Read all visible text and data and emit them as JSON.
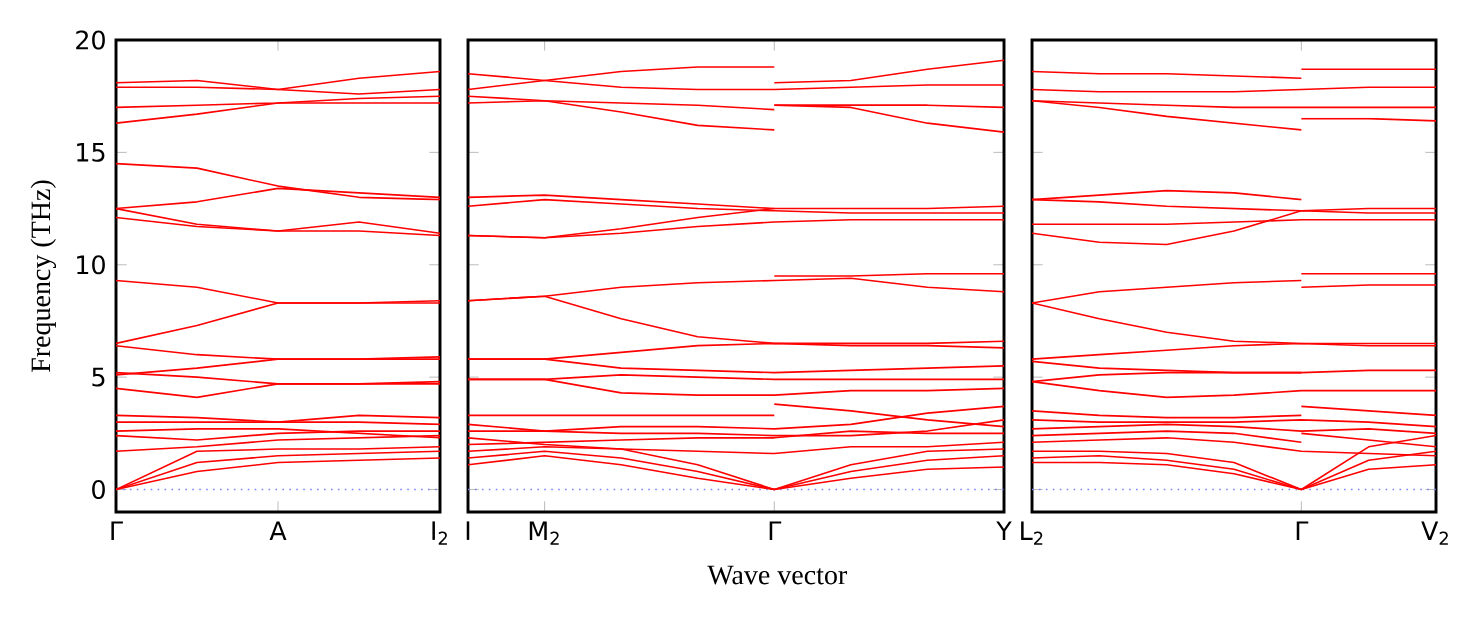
{
  "chart_data": [
    {
      "type": "line",
      "color": "#ff0000",
      "ylabel": "Frequency (THz)",
      "ylim": [
        -1,
        20
      ],
      "yticks": [
        0,
        5,
        10,
        15,
        20
      ],
      "categories": [
        "Γ",
        null,
        "A",
        null,
        "I$_{2}$"
      ],
      "ref_lines": [
        {
          "axis": "y",
          "value": 0,
          "color": "#8080ff",
          "line_style": "dotted"
        }
      ],
      "series": [
        {
          "values": [
            18.1,
            18.2,
            17.8,
            18.3,
            18.6
          ]
        },
        {
          "values": [
            17.9,
            17.9,
            17.8,
            17.6,
            17.8
          ]
        },
        {
          "values": [
            17.0,
            17.1,
            17.2,
            17.4,
            17.5
          ]
        },
        {
          "values": [
            16.3,
            16.7,
            17.2,
            17.2,
            17.2
          ]
        },
        {
          "values": [
            14.5,
            14.3,
            13.5,
            13.0,
            12.9
          ]
        },
        {
          "values": [
            12.5,
            12.8,
            13.4,
            13.2,
            13.0
          ]
        },
        {
          "values": [
            12.5,
            11.8,
            11.5,
            11.9,
            11.4
          ]
        },
        {
          "values": [
            12.1,
            11.7,
            11.5,
            11.5,
            11.3
          ]
        },
        {
          "values": [
            9.3,
            9.0,
            8.3,
            8.3,
            8.3
          ]
        },
        {
          "values": [
            6.5,
            7.3,
            8.3,
            8.3,
            8.4
          ]
        },
        {
          "values": [
            6.4,
            6.0,
            5.8,
            5.8,
            5.8
          ]
        },
        {
          "values": [
            5.2,
            5.0,
            4.7,
            4.7,
            4.7
          ]
        },
        {
          "values": [
            5.1,
            5.4,
            5.8,
            5.8,
            5.9
          ]
        },
        {
          "values": [
            4.5,
            4.1,
            4.7,
            4.7,
            4.8
          ]
        },
        {
          "values": [
            3.3,
            3.2,
            3.0,
            3.3,
            3.2
          ]
        },
        {
          "values": [
            3.0,
            3.0,
            3.0,
            3.0,
            2.9
          ]
        },
        {
          "values": [
            2.6,
            2.7,
            2.7,
            2.5,
            2.3
          ]
        },
        {
          "values": [
            2.4,
            2.2,
            2.5,
            2.6,
            2.6
          ]
        },
        {
          "values": [
            1.7,
            1.9,
            2.2,
            2.3,
            2.4
          ]
        },
        {
          "values": [
            0,
            1.7,
            1.8,
            1.8,
            1.9
          ]
        },
        {
          "values": [
            0,
            1.2,
            1.5,
            1.6,
            1.7
          ]
        },
        {
          "values": [
            0,
            0.8,
            1.2,
            1.3,
            1.4
          ]
        }
      ]
    },
    {
      "type": "line",
      "color": "#ff0000",
      "xlabel": "Wave vector",
      "tick_labels": "x",
      "ylim": [
        -1,
        20
      ],
      "yticks": [
        0,
        5,
        10,
        15,
        20
      ],
      "categories": [
        "I",
        "M$_{2}$",
        null,
        null,
        "Γ",
        null,
        null,
        "Y"
      ],
      "ref_lines": [
        {
          "axis": "y",
          "value": 0,
          "color": "#8080ff",
          "line_style": "dotted"
        }
      ],
      "series": [
        {
          "values": [
            18.5,
            18.2,
            17.9,
            17.8,
            17.8,
            17.9,
            18.0,
            18.0
          ]
        },
        {
          "values": [
            17.8,
            18.2,
            18.6,
            18.8,
            18.8,
            null,
            null,
            null
          ]
        },
        {
          "values": [
            null,
            null,
            null,
            null,
            18.1,
            18.2,
            18.7,
            19.1
          ]
        },
        {
          "values": [
            17.5,
            17.3,
            17.2,
            17.1,
            16.9,
            null,
            null,
            null
          ]
        },
        {
          "values": [
            null,
            null,
            null,
            null,
            17.1,
            17.1,
            17.1,
            17.0
          ]
        },
        {
          "values": [
            null,
            null,
            null,
            null,
            17.1,
            17.0,
            16.3,
            15.9
          ]
        },
        {
          "values": [
            17.2,
            17.3,
            16.8,
            16.2,
            16.0,
            null,
            null,
            null
          ]
        },
        {
          "values": [
            13.0,
            13.1,
            12.9,
            12.7,
            12.5,
            12.5,
            12.5,
            12.6
          ]
        },
        {
          "values": [
            12.6,
            12.9,
            12.7,
            12.5,
            12.4,
            12.3,
            12.3,
            12.3
          ]
        },
        {
          "values": [
            11.3,
            11.2,
            11.6,
            12.1,
            12.5,
            null,
            null,
            null
          ]
        },
        {
          "values": [
            11.3,
            11.2,
            11.4,
            11.7,
            11.9,
            12.0,
            12.0,
            12.0
          ]
        },
        {
          "values": [
            8.4,
            8.6,
            9.0,
            9.2,
            9.3,
            9.4,
            9.0,
            8.8
          ]
        },
        {
          "values": [
            null,
            null,
            null,
            null,
            9.5,
            9.5,
            9.6,
            9.6
          ]
        },
        {
          "values": [
            8.4,
            8.6,
            7.6,
            6.8,
            6.5,
            6.5,
            6.5,
            6.6
          ]
        },
        {
          "values": [
            5.8,
            5.8,
            6.1,
            6.4,
            6.5,
            6.4,
            6.4,
            6.3
          ]
        },
        {
          "values": [
            5.8,
            5.8,
            5.4,
            5.3,
            5.2,
            5.3,
            5.4,
            5.5
          ]
        },
        {
          "values": [
            4.9,
            4.9,
            5.1,
            5.0,
            4.9,
            4.9,
            4.9,
            4.9
          ]
        },
        {
          "values": [
            4.9,
            4.9,
            4.3,
            4.2,
            4.2,
            4.4,
            4.4,
            4.5
          ]
        },
        {
          "values": [
            3.3,
            3.3,
            3.3,
            3.3,
            3.3,
            null,
            null,
            null
          ]
        },
        {
          "values": [
            null,
            null,
            null,
            null,
            3.8,
            3.5,
            3.1,
            2.8
          ]
        },
        {
          "values": [
            2.9,
            2.6,
            2.8,
            2.8,
            2.7,
            2.9,
            3.4,
            3.7
          ]
        },
        {
          "values": [
            2.6,
            2.6,
            2.5,
            2.5,
            2.4,
            2.4,
            2.6,
            3.1
          ]
        },
        {
          "values": [
            2.0,
            2.1,
            2.2,
            2.3,
            2.3,
            2.6,
            2.5,
            2.5
          ]
        },
        {
          "values": [
            1.7,
            1.9,
            1.8,
            1.7,
            1.6,
            1.9,
            1.9,
            2.1
          ]
        },
        {
          "values": [
            2.3,
            2.0,
            1.8,
            1.1,
            0,
            1.1,
            1.7,
            1.8
          ]
        },
        {
          "values": [
            1.4,
            1.7,
            1.4,
            0.8,
            0,
            0.8,
            1.3,
            1.5
          ]
        },
        {
          "values": [
            1.1,
            1.5,
            1.1,
            0.5,
            0,
            0.5,
            0.9,
            1.0
          ]
        }
      ]
    },
    {
      "type": "line",
      "color": "#ff0000",
      "tick_labels": "x",
      "ylim": [
        -1,
        20
      ],
      "yticks": [
        0,
        5,
        10,
        15,
        20
      ],
      "categories": [
        "L$_{2}$",
        null,
        null,
        null,
        "Γ",
        null,
        "V$_{2}$"
      ],
      "ref_lines": [
        {
          "axis": "y",
          "value": 0,
          "color": "#8080ff",
          "line_style": "dotted"
        }
      ],
      "series": [
        {
          "values": [
            18.6,
            18.5,
            18.5,
            18.4,
            18.3,
            null,
            null
          ]
        },
        {
          "values": [
            null,
            null,
            null,
            null,
            18.7,
            18.7,
            18.7
          ]
        },
        {
          "values": [
            17.8,
            17.7,
            17.7,
            17.7,
            17.8,
            17.9,
            17.9
          ]
        },
        {
          "values": [
            17.3,
            17.2,
            17.1,
            17.0,
            17.0,
            17.0,
            17.0
          ]
        },
        {
          "values": [
            17.3,
            17.0,
            16.6,
            16.3,
            16.0,
            null,
            null
          ]
        },
        {
          "values": [
            null,
            null,
            null,
            null,
            16.5,
            16.5,
            16.4
          ]
        },
        {
          "values": [
            12.9,
            13.1,
            13.3,
            13.2,
            12.9,
            null,
            null
          ]
        },
        {
          "values": [
            12.9,
            12.8,
            12.6,
            12.5,
            12.4,
            12.5,
            12.5
          ]
        },
        {
          "values": [
            11.8,
            11.8,
            11.8,
            11.9,
            12.0,
            12.0,
            12.0
          ]
        },
        {
          "values": [
            11.4,
            11.0,
            10.9,
            11.5,
            12.4,
            12.3,
            12.3
          ]
        },
        {
          "values": [
            8.3,
            8.8,
            9.0,
            9.2,
            9.3,
            null,
            null
          ]
        },
        {
          "values": [
            null,
            null,
            null,
            null,
            9.6,
            9.6,
            9.6
          ]
        },
        {
          "values": [
            null,
            null,
            null,
            null,
            9.0,
            9.1,
            9.1
          ]
        },
        {
          "values": [
            8.3,
            7.6,
            7.0,
            6.6,
            6.5,
            6.5,
            6.5
          ]
        },
        {
          "values": [
            5.8,
            6.0,
            6.2,
            6.4,
            6.5,
            6.4,
            6.4
          ]
        },
        {
          "values": [
            5.7,
            5.4,
            5.3,
            5.2,
            5.2,
            5.3,
            5.3
          ]
        },
        {
          "values": [
            4.8,
            5.1,
            5.2,
            5.2,
            5.2,
            null,
            null
          ]
        },
        {
          "values": [
            4.8,
            4.4,
            4.1,
            4.2,
            4.4,
            4.4,
            4.4
          ]
        },
        {
          "values": [
            3.5,
            3.3,
            3.2,
            3.2,
            3.3,
            null,
            null
          ]
        },
        {
          "values": [
            null,
            null,
            null,
            null,
            3.7,
            3.5,
            3.3
          ]
        },
        {
          "values": [
            3.1,
            3.0,
            3.0,
            3.0,
            3.1,
            3.0,
            2.8
          ]
        },
        {
          "values": [
            2.7,
            2.8,
            2.9,
            2.8,
            2.6,
            2.7,
            2.5
          ]
        },
        {
          "values": [
            2.4,
            2.5,
            2.6,
            2.5,
            2.1,
            null,
            null
          ]
        },
        {
          "values": [
            null,
            null,
            null,
            null,
            2.5,
            2.2,
            1.9
          ]
        },
        {
          "values": [
            2.1,
            2.2,
            2.3,
            2.1,
            1.7,
            1.6,
            1.5
          ]
        },
        {
          "values": [
            1.7,
            1.7,
            1.6,
            1.2,
            0,
            1.9,
            2.4
          ]
        },
        {
          "values": [
            1.4,
            1.5,
            1.3,
            0.9,
            0,
            1.3,
            1.7
          ]
        },
        {
          "values": [
            1.2,
            1.2,
            1.1,
            0.7,
            0,
            0.9,
            1.1
          ]
        }
      ]
    }
  ]
}
